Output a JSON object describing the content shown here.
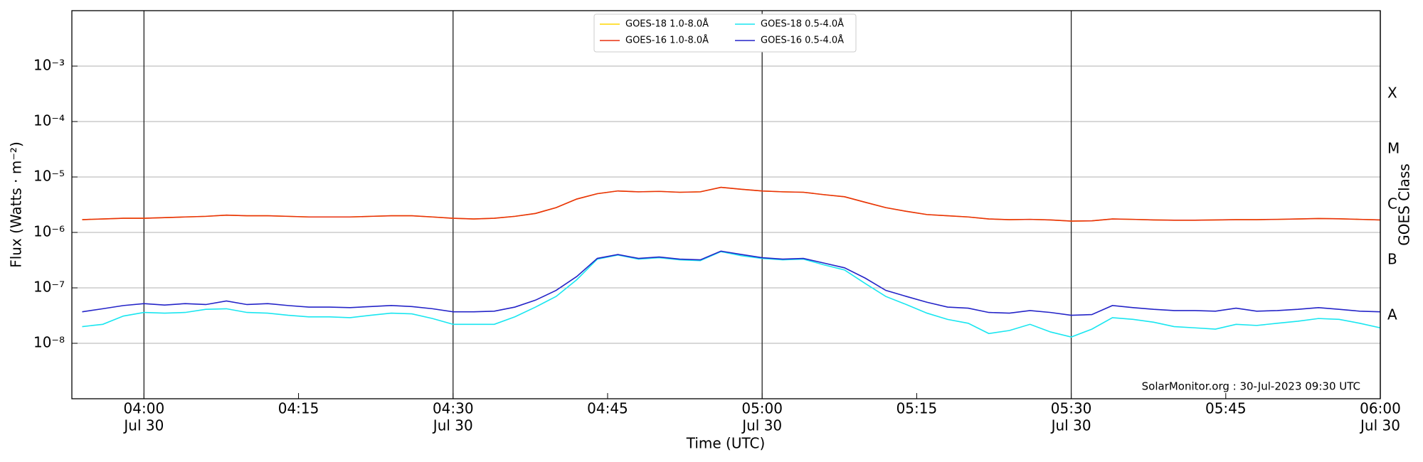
{
  "chart_data": {
    "type": "line",
    "xlabel": "Time (UTC)",
    "ylabel": "Flux (Watts · m⁻²)",
    "y2label": "GOES Class",
    "annotation": "SolarMonitor.org : 30-Jul-2023 09:30 UTC",
    "log": true,
    "grid": true,
    "legend": "upper center",
    "xlim": [
      "03:53",
      "06:00"
    ],
    "xticks": [
      {
        "value": "04:00",
        "label": "04:00",
        "sublabel": "Jul 30"
      },
      {
        "value": "04:15",
        "label": "04:15"
      },
      {
        "value": "04:30",
        "label": "04:30",
        "sublabel": "Jul 30"
      },
      {
        "value": "04:45",
        "label": "04:45"
      },
      {
        "value": "05:00",
        "label": "05:00",
        "sublabel": "Jul 30"
      },
      {
        "value": "05:15",
        "label": "05:15"
      },
      {
        "value": "05:30",
        "label": "05:30",
        "sublabel": "Jul 30"
      },
      {
        "value": "05:45",
        "label": "05:45"
      },
      {
        "value": "06:00",
        "label": "06:00",
        "sublabel": "Jul 30"
      }
    ],
    "ylim": [
      1e-09,
      0.01
    ],
    "yticks": [
      {
        "value": 1e-08,
        "label": "10⁻⁸"
      },
      {
        "value": 1e-07,
        "label": "10⁻⁷"
      },
      {
        "value": 1e-06,
        "label": "10⁻⁶"
      },
      {
        "value": 1e-05,
        "label": "10⁻⁵"
      },
      {
        "value": 0.0001,
        "label": "10⁻⁴"
      },
      {
        "value": 0.001,
        "label": "10⁻³"
      }
    ],
    "y2lim": [
      1e-09,
      0.01
    ],
    "y2ticks": [
      {
        "value": 3.162e-08,
        "label": "A"
      },
      {
        "value": 3.162e-07,
        "label": "B"
      },
      {
        "value": 3.162e-06,
        "label": "C"
      },
      {
        "value": 3.162e-05,
        "label": "M"
      },
      {
        "value": 0.0003162,
        "label": "X"
      }
    ],
    "x": [
      "03:54",
      "03:56",
      "03:58",
      "04:00",
      "04:02",
      "04:04",
      "04:06",
      "04:08",
      "04:10",
      "04:12",
      "04:14",
      "04:16",
      "04:18",
      "04:20",
      "04:22",
      "04:24",
      "04:26",
      "04:28",
      "04:30",
      "04:32",
      "04:34",
      "04:36",
      "04:38",
      "04:40",
      "04:42",
      "04:44",
      "04:46",
      "04:48",
      "04:50",
      "04:52",
      "04:54",
      "04:56",
      "04:58",
      "05:00",
      "05:02",
      "05:04",
      "05:06",
      "05:08",
      "05:10",
      "05:12",
      "05:14",
      "05:16",
      "05:18",
      "05:20",
      "05:22",
      "05:24",
      "05:26",
      "05:28",
      "05:30",
      "05:32",
      "05:34",
      "05:36",
      "05:38",
      "05:40",
      "05:42",
      "05:44",
      "05:46",
      "05:48",
      "05:50",
      "05:52",
      "05:54",
      "05:56",
      "05:58",
      "06:00"
    ],
    "series": [
      {
        "name": "GOES-18 1.0-8.0Å",
        "color": "#ffd700",
        "values": [
          1.7e-06,
          1.75e-06,
          1.8e-06,
          1.8e-06,
          1.85e-06,
          1.9e-06,
          1.95e-06,
          2.05e-06,
          2e-06,
          2e-06,
          1.95e-06,
          1.9e-06,
          1.9e-06,
          1.9e-06,
          1.95e-06,
          2e-06,
          2e-06,
          1.9e-06,
          1.8e-06,
          1.75e-06,
          1.8e-06,
          1.95e-06,
          2.2e-06,
          2.8e-06,
          4e-06,
          5e-06,
          5.6e-06,
          5.4e-06,
          5.5e-06,
          5.3e-06,
          5.4e-06,
          6.5e-06,
          6e-06,
          5.6e-06,
          5.4e-06,
          5.3e-06,
          4.8e-06,
          4.4e-06,
          3.5e-06,
          2.8e-06,
          2.4e-06,
          2.1e-06,
          2e-06,
          1.9e-06,
          1.75e-06,
          1.7e-06,
          1.72e-06,
          1.68e-06,
          1.6e-06,
          1.62e-06,
          1.75e-06,
          1.72e-06,
          1.68e-06,
          1.66e-06,
          1.66e-06,
          1.68e-06,
          1.7e-06,
          1.7e-06,
          1.72e-06,
          1.75e-06,
          1.78e-06,
          1.76e-06,
          1.72e-06,
          1.68e-06
        ]
      },
      {
        "name": "GOES-16 1.0-8.0Å",
        "color": "#e8300f",
        "values": [
          1.7e-06,
          1.75e-06,
          1.8e-06,
          1.8e-06,
          1.85e-06,
          1.9e-06,
          1.95e-06,
          2.05e-06,
          2e-06,
          2e-06,
          1.95e-06,
          1.9e-06,
          1.9e-06,
          1.9e-06,
          1.95e-06,
          2e-06,
          2e-06,
          1.9e-06,
          1.8e-06,
          1.75e-06,
          1.8e-06,
          1.95e-06,
          2.2e-06,
          2.8e-06,
          4e-06,
          5e-06,
          5.6e-06,
          5.4e-06,
          5.5e-06,
          5.3e-06,
          5.4e-06,
          6.5e-06,
          6e-06,
          5.6e-06,
          5.4e-06,
          5.3e-06,
          4.8e-06,
          4.4e-06,
          3.5e-06,
          2.8e-06,
          2.4e-06,
          2.1e-06,
          2e-06,
          1.9e-06,
          1.75e-06,
          1.7e-06,
          1.72e-06,
          1.68e-06,
          1.6e-06,
          1.62e-06,
          1.75e-06,
          1.72e-06,
          1.68e-06,
          1.66e-06,
          1.66e-06,
          1.68e-06,
          1.7e-06,
          1.7e-06,
          1.72e-06,
          1.75e-06,
          1.78e-06,
          1.76e-06,
          1.72e-06,
          1.68e-06
        ]
      },
      {
        "name": "GOES-18 0.5-4.0Å",
        "color": "#19e6f0",
        "values": [
          2e-08,
          2.2e-08,
          3.1e-08,
          3.6e-08,
          3.5e-08,
          3.6e-08,
          4.1e-08,
          4.2e-08,
          3.6e-08,
          3.5e-08,
          3.2e-08,
          3e-08,
          3e-08,
          2.9e-08,
          3.2e-08,
          3.5e-08,
          3.4e-08,
          2.8e-08,
          2.2e-08,
          2.2e-08,
          2.2e-08,
          3e-08,
          4.5e-08,
          7e-08,
          1.4e-07,
          3.3e-07,
          3.9e-07,
          3.3e-07,
          3.5e-07,
          3.2e-07,
          3.1e-07,
          4.5e-07,
          3.8e-07,
          3.4e-07,
          3.2e-07,
          3.3e-07,
          2.6e-07,
          2.1e-07,
          1.2e-07,
          7e-08,
          5e-08,
          3.5e-08,
          2.7e-08,
          2.3e-08,
          1.5e-08,
          1.7e-08,
          2.2e-08,
          1.6e-08,
          1.3e-08,
          1.8e-08,
          2.9e-08,
          2.7e-08,
          2.4e-08,
          2e-08,
          1.9e-08,
          1.8e-08,
          2.2e-08,
          2.1e-08,
          2.3e-08,
          2.5e-08,
          2.8e-08,
          2.7e-08,
          2.3e-08,
          1.9e-08
        ]
      },
      {
        "name": "GOES-16 0.5-4.0Å",
        "color": "#2424c8",
        "values": [
          3.7e-08,
          4.2e-08,
          4.8e-08,
          5.2e-08,
          4.9e-08,
          5.2e-08,
          5e-08,
          5.8e-08,
          5e-08,
          5.2e-08,
          4.8e-08,
          4.5e-08,
          4.5e-08,
          4.4e-08,
          4.6e-08,
          4.8e-08,
          4.6e-08,
          4.2e-08,
          3.7e-08,
          3.7e-08,
          3.8e-08,
          4.5e-08,
          6e-08,
          9e-08,
          1.6e-07,
          3.4e-07,
          4e-07,
          3.4e-07,
          3.6e-07,
          3.3e-07,
          3.2e-07,
          4.6e-07,
          4e-07,
          3.5e-07,
          3.3e-07,
          3.4e-07,
          2.8e-07,
          2.3e-07,
          1.5e-07,
          9e-08,
          7e-08,
          5.5e-08,
          4.5e-08,
          4.3e-08,
          3.6e-08,
          3.5e-08,
          3.9e-08,
          3.6e-08,
          3.2e-08,
          3.3e-08,
          4.8e-08,
          4.4e-08,
          4.1e-08,
          3.9e-08,
          3.9e-08,
          3.8e-08,
          4.3e-08,
          3.8e-08,
          3.9e-08,
          4.1e-08,
          4.4e-08,
          4.1e-08,
          3.8e-08,
          3.7e-08
        ]
      }
    ]
  }
}
